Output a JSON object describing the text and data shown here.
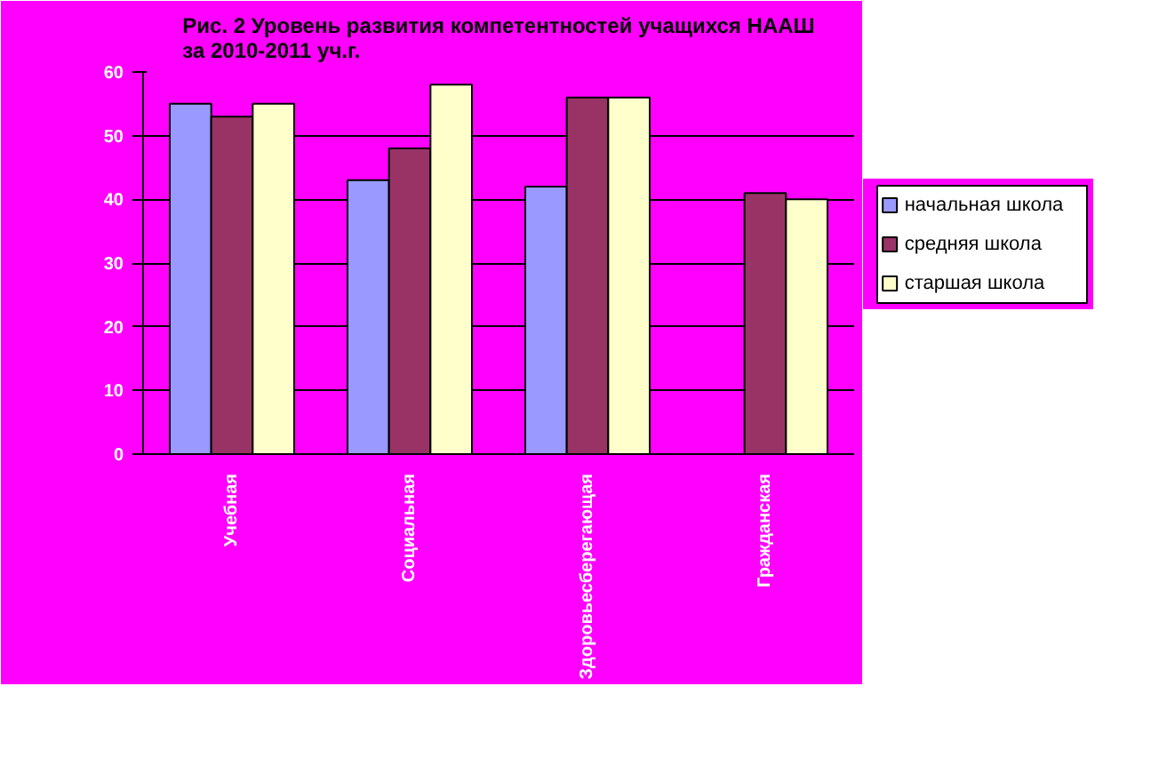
{
  "chart_data": {
    "type": "bar",
    "title": "Рис. 2 Уровень развития компетентностей учащихся НААШ\nза 2010-2011 уч.г.",
    "categories": [
      "Учебная",
      "Социальная",
      "Здоровьесберегающая",
      "Гражданская"
    ],
    "series": [
      {
        "name": "начальная школа",
        "color": "#9999ff",
        "values": [
          55,
          43,
          42,
          null
        ]
      },
      {
        "name": "средняя школа",
        "color": "#993366",
        "values": [
          53,
          48,
          56,
          41
        ]
      },
      {
        "name": "старшая школа",
        "color": "#ffffcc",
        "values": [
          55,
          58,
          56,
          40
        ]
      }
    ],
    "ylim": [
      0,
      60
    ],
    "yticks": [
      0,
      10,
      20,
      30,
      40,
      50,
      60
    ],
    "grid": "y",
    "legend": "right"
  }
}
